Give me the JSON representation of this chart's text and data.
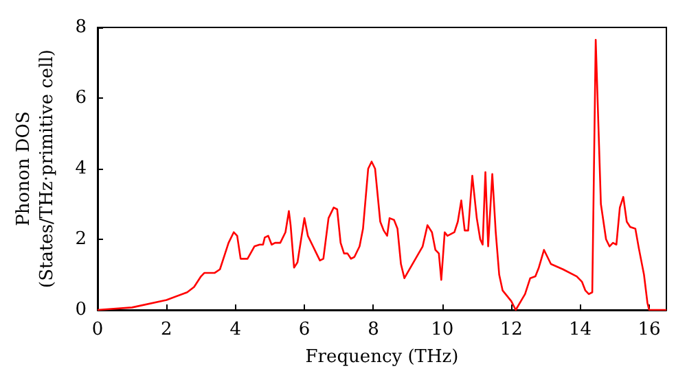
{
  "chart_data": {
    "type": "line",
    "xlabel": "Frequency (THz)",
    "ylabel": "Phonon DOS\n(States/THz·primitive cell)",
    "xlim": [
      0,
      16.5
    ],
    "xticks": [
      0,
      2,
      4,
      6,
      8,
      10,
      12,
      14,
      16
    ],
    "ylim": [
      0,
      8
    ],
    "yticks": [
      0,
      2,
      4,
      6,
      8
    ],
    "grid": false,
    "marker": "none",
    "line_style": "solid",
    "series": [
      {
        "color": "#ff0000",
        "x": [
          0,
          1,
          2,
          2.6,
          2.8,
          3.0,
          3.1,
          3.4,
          3.55,
          3.7,
          3.8,
          3.95,
          4.05,
          4.15,
          4.35,
          4.55,
          4.7,
          4.8,
          4.85,
          4.95,
          5.05,
          5.15,
          5.3,
          5.45,
          5.55,
          5.6,
          5.7,
          5.8,
          6.0,
          6.1,
          6.25,
          6.35,
          6.45,
          6.55,
          6.7,
          6.85,
          6.95,
          7.05,
          7.15,
          7.25,
          7.35,
          7.45,
          7.6,
          7.7,
          7.85,
          7.95,
          8.05,
          8.2,
          8.3,
          8.4,
          8.47,
          8.6,
          8.7,
          8.8,
          8.9,
          9.43,
          9.57,
          9.7,
          9.8,
          9.9,
          9.97,
          10.07,
          10.15,
          10.35,
          10.45,
          10.55,
          10.65,
          10.75,
          10.87,
          11.0,
          11.1,
          11.17,
          11.25,
          11.33,
          11.45,
          11.55,
          11.65,
          11.75,
          12.0,
          12.13,
          12.4,
          12.55,
          12.7,
          12.8,
          12.95,
          13.15,
          13.5,
          13.9,
          14.05,
          14.15,
          14.25,
          14.35,
          14.45,
          14.6,
          14.75,
          14.85,
          14.95,
          15.05,
          15.15,
          15.25,
          15.35,
          15.45,
          15.6,
          15.7,
          15.85,
          15.95,
          16.0,
          16.5
        ],
        "values": [
          0,
          0.07,
          0.28,
          0.5,
          0.65,
          0.95,
          1.05,
          1.05,
          1.15,
          1.6,
          1.9,
          2.2,
          2.1,
          1.45,
          1.45,
          1.8,
          1.85,
          1.85,
          2.05,
          2.1,
          1.85,
          1.9,
          1.9,
          2.2,
          2.8,
          2.4,
          1.2,
          1.35,
          2.6,
          2.1,
          1.8,
          1.6,
          1.4,
          1.45,
          2.6,
          2.9,
          2.85,
          1.9,
          1.6,
          1.6,
          1.45,
          1.5,
          1.8,
          2.3,
          4.0,
          4.2,
          4.0,
          2.5,
          2.25,
          2.1,
          2.6,
          2.55,
          2.3,
          1.3,
          0.9,
          1.8,
          2.4,
          2.2,
          1.7,
          1.6,
          0.85,
          2.2,
          2.1,
          2.2,
          2.5,
          3.1,
          2.25,
          2.25,
          3.8,
          2.6,
          2.0,
          1.85,
          3.9,
          1.8,
          3.85,
          2.2,
          1.0,
          0.55,
          0.25,
          0,
          0.45,
          0.9,
          0.95,
          1.2,
          1.7,
          1.3,
          1.15,
          0.95,
          0.8,
          0.55,
          0.45,
          0.5,
          7.65,
          3.0,
          2.0,
          1.8,
          1.9,
          1.85,
          2.9,
          3.2,
          2.5,
          2.35,
          2.3,
          1.75,
          1.0,
          0.2,
          0,
          0
        ]
      }
    ]
  }
}
